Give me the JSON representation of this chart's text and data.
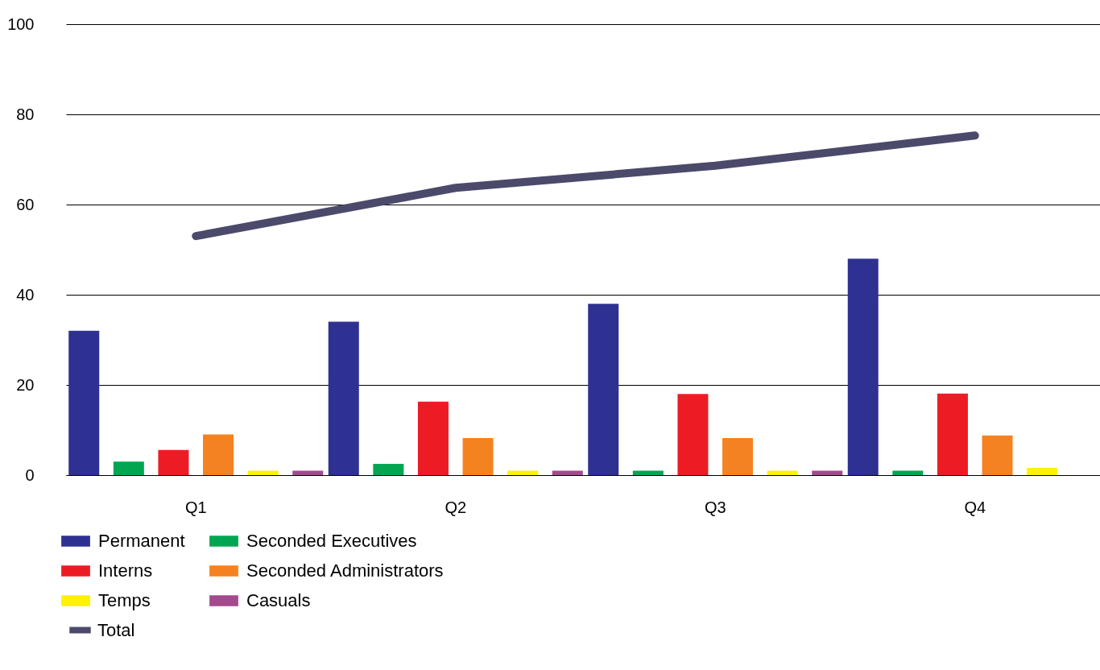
{
  "chart_data": {
    "type": "bar",
    "categories": [
      "Q1",
      "Q2",
      "Q3",
      "Q4"
    ],
    "series": [
      {
        "name": "Permanent",
        "color": "#2e3192",
        "values": [
          32,
          34,
          38,
          48
        ]
      },
      {
        "name": "Seconded Executives",
        "color": "#00a651",
        "values": [
          3,
          2.5,
          1,
          1
        ]
      },
      {
        "name": "Interns",
        "color": "#ed1c24",
        "values": [
          5.6,
          16.3,
          18,
          18.1
        ]
      },
      {
        "name": "Seconded Administrators",
        "color": "#f58220",
        "values": [
          9,
          8.2,
          8.2,
          8.8
        ]
      },
      {
        "name": "Temps",
        "color": "#fff200",
        "values": [
          1,
          1,
          1,
          1.6
        ]
      },
      {
        "name": "Casuals",
        "color": "#a3498d",
        "values": [
          1,
          1,
          1,
          null
        ]
      },
      {
        "name": "Total",
        "type": "line",
        "color": "#4b4a6b",
        "values": [
          53,
          63.7,
          68.6,
          75.3
        ]
      }
    ],
    "ylim": [
      0,
      100
    ],
    "yticks": [
      0,
      20,
      40,
      60,
      80,
      100
    ],
    "grid": "y",
    "legend": "bottom left"
  }
}
